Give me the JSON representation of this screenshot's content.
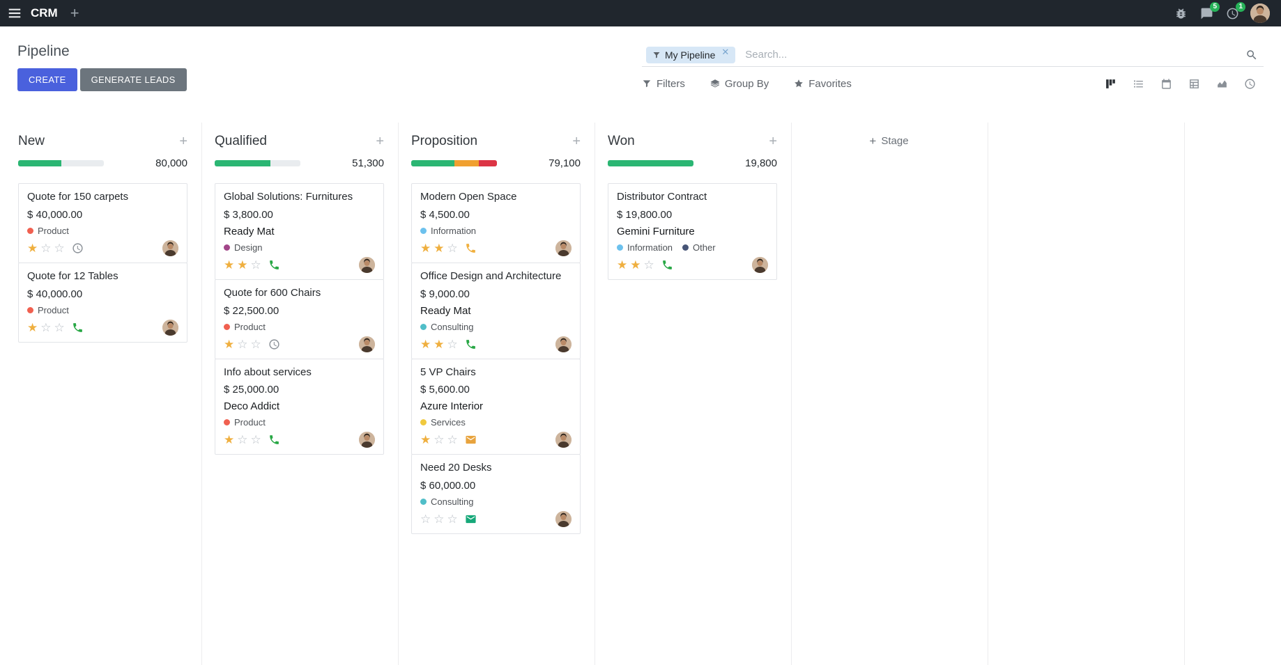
{
  "colors": {
    "accent": "#4a61dd",
    "topbar_bg": "#20262d",
    "badge_green": "#27b259",
    "success": "#2bb673",
    "warning": "#f0a030",
    "danger": "#dc3545"
  },
  "topbar": {
    "app_name": "CRM",
    "messages_badge": "5",
    "activities_badge": "1"
  },
  "control_panel": {
    "title": "Pipeline",
    "create_label": "CREATE",
    "generate_leads_label": "GENERATE LEADS",
    "filters_label": "Filters",
    "group_by_label": "Group By",
    "favorites_label": "Favorites",
    "search": {
      "facet_label": "My Pipeline",
      "placeholder": "Search..."
    }
  },
  "view_switcher": [
    {
      "name": "kanban",
      "active": true
    },
    {
      "name": "list",
      "active": false
    },
    {
      "name": "calendar",
      "active": false
    },
    {
      "name": "pivot",
      "active": false
    },
    {
      "name": "graph",
      "active": false
    },
    {
      "name": "activity",
      "active": false
    }
  ],
  "kanban": {
    "add_stage_label": "Stage",
    "columns": [
      {
        "name": "New",
        "total": "80,000",
        "progress": [
          {
            "color": "#2bb673",
            "pct": 50
          }
        ],
        "cards": [
          {
            "title": "Quote for 150 carpets",
            "amount": "$ 40,000.00",
            "tags": [
              {
                "label": "Product",
                "color": "#f06050"
              }
            ],
            "stars": 1,
            "activity": {
              "type": "clock",
              "color": "#8a9097"
            }
          },
          {
            "title": "Quote for 12 Tables",
            "amount": "$ 40,000.00",
            "tags": [
              {
                "label": "Product",
                "color": "#f06050"
              }
            ],
            "stars": 1,
            "activity": {
              "type": "phone",
              "color": "#28a745"
            }
          }
        ]
      },
      {
        "name": "Qualified",
        "total": "51,300",
        "progress": [
          {
            "color": "#2bb673",
            "pct": 65
          }
        ],
        "cards": [
          {
            "title": "Global Solutions: Furnitures",
            "amount": "$ 3,800.00",
            "partner": "Ready Mat",
            "tags": [
              {
                "label": "Design",
                "color": "#a24689"
              }
            ],
            "stars": 2,
            "activity": {
              "type": "phone",
              "color": "#28a745"
            }
          },
          {
            "title": "Quote for 600 Chairs",
            "amount": "$ 22,500.00",
            "tags": [
              {
                "label": "Product",
                "color": "#f06050"
              }
            ],
            "stars": 1,
            "activity": {
              "type": "clock",
              "color": "#8a9097"
            }
          },
          {
            "title": "Info about services",
            "amount": "$ 25,000.00",
            "partner": "Deco Addict",
            "tags": [
              {
                "label": "Product",
                "color": "#f06050"
              }
            ],
            "stars": 1,
            "activity": {
              "type": "phone",
              "color": "#28a745"
            }
          }
        ]
      },
      {
        "name": "Proposition",
        "total": "79,100",
        "progress": [
          {
            "color": "#2bb673",
            "pct": 50
          },
          {
            "color": "#f0a030",
            "pct": 29
          },
          {
            "color": "#dc3545",
            "pct": 21
          }
        ],
        "cards": [
          {
            "title": "Modern Open Space",
            "amount": "$ 4,500.00",
            "tags": [
              {
                "label": "Information",
                "color": "#6cc1ed"
              }
            ],
            "stars": 2,
            "activity": {
              "type": "phone",
              "color": "#f0b03f"
            }
          },
          {
            "title": "Office Design and Architecture",
            "amount": "$ 9,000.00",
            "partner": "Ready Mat",
            "tags": [
              {
                "label": "Consulting",
                "color": "#50bec8"
              }
            ],
            "stars": 2,
            "activity": {
              "type": "phone",
              "color": "#28a745"
            }
          },
          {
            "title": "5 VP Chairs",
            "amount": "$ 5,600.00",
            "partner": "Azure Interior",
            "tags": [
              {
                "label": "Services",
                "color": "#f0c93e"
              }
            ],
            "stars": 1,
            "activity": {
              "type": "envelope",
              "color": "#e8a33d"
            }
          },
          {
            "title": "Need 20 Desks",
            "amount": "$ 60,000.00",
            "tags": [
              {
                "label": "Consulting",
                "color": "#50bec8"
              }
            ],
            "stars": 0,
            "activity": {
              "type": "envelope",
              "color": "#16a879"
            }
          }
        ]
      },
      {
        "name": "Won",
        "total": "19,800",
        "progress": [
          {
            "color": "#2bb673",
            "pct": 100
          }
        ],
        "cards": [
          {
            "title": "Distributor Contract",
            "amount": "$ 19,800.00",
            "partner": "Gemini Furniture",
            "tags": [
              {
                "label": "Information",
                "color": "#6cc1ed"
              },
              {
                "label": "Other",
                "color": "#475577"
              }
            ],
            "stars": 2,
            "activity": {
              "type": "phone",
              "color": "#28a745"
            }
          }
        ]
      }
    ]
  }
}
